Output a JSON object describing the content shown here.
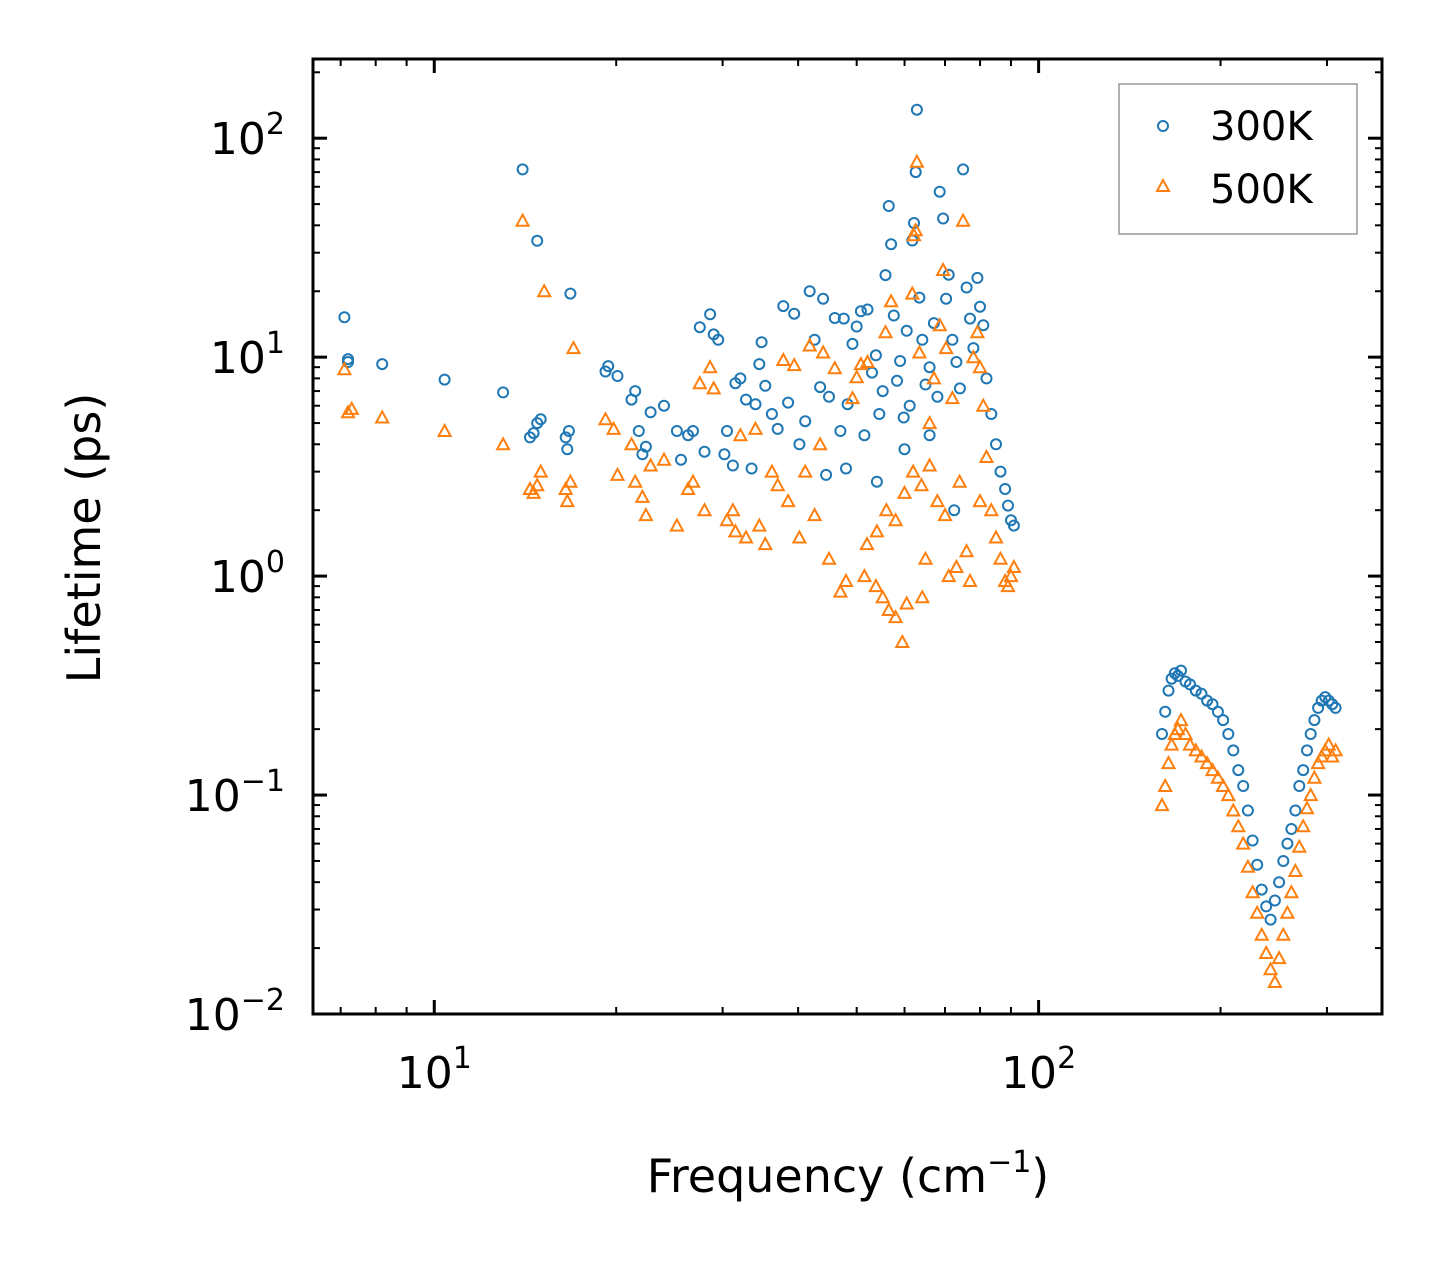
{
  "chart_data": {
    "type": "scatter",
    "title": "",
    "xlabel": "Frequency (cm",
    "xlabel_sup": "−1",
    "xlabel_tail": ")",
    "ylabel": "Lifetime (ps)",
    "xscale": "log",
    "yscale": "log",
    "xlim": [
      6.3,
      370
    ],
    "ylim": [
      0.01,
      230
    ],
    "x_ticks": [
      {
        "value": 10,
        "base": "10",
        "exp": "1"
      },
      {
        "value": 100,
        "base": "10",
        "exp": "2"
      }
    ],
    "y_ticks": [
      {
        "value": 0.01,
        "base": "10",
        "exp": "−2"
      },
      {
        "value": 0.1,
        "base": "10",
        "exp": "−1"
      },
      {
        "value": 1,
        "base": "10",
        "exp": "0"
      },
      {
        "value": 10,
        "base": "10",
        "exp": "1"
      },
      {
        "value": 100,
        "base": "10",
        "exp": "2"
      }
    ],
    "legend_position": "top-right",
    "series": [
      {
        "name": "300K",
        "marker": "circle",
        "color": "#1f77b4",
        "points": [
          [
            7.1,
            15.2
          ],
          [
            7.2,
            9.8
          ],
          [
            7.2,
            9.5
          ],
          [
            8.2,
            9.3
          ],
          [
            10.4,
            7.9
          ],
          [
            13.0,
            6.9
          ],
          [
            14.0,
            72.0
          ],
          [
            14.4,
            4.3
          ],
          [
            14.6,
            4.5
          ],
          [
            14.8,
            34.0
          ],
          [
            14.8,
            5.0
          ],
          [
            15.0,
            5.2
          ],
          [
            16.5,
            4.3
          ],
          [
            16.6,
            3.8
          ],
          [
            16.7,
            4.6
          ],
          [
            16.8,
            19.5
          ],
          [
            19.2,
            8.6
          ],
          [
            19.4,
            9.1
          ],
          [
            20.1,
            8.2
          ],
          [
            21.2,
            6.4
          ],
          [
            21.5,
            7.0
          ],
          [
            21.8,
            4.6
          ],
          [
            22.1,
            3.6
          ],
          [
            22.4,
            3.9
          ],
          [
            22.8,
            5.6
          ],
          [
            24.0,
            6.0
          ],
          [
            25.2,
            4.6
          ],
          [
            25.6,
            3.4
          ],
          [
            26.3,
            4.4
          ],
          [
            26.8,
            4.6
          ],
          [
            27.5,
            13.7
          ],
          [
            28.0,
            3.7
          ],
          [
            28.6,
            15.7
          ],
          [
            29.0,
            12.7
          ],
          [
            29.5,
            12.0
          ],
          [
            30.2,
            3.6
          ],
          [
            30.5,
            4.6
          ],
          [
            31.2,
            3.2
          ],
          [
            31.5,
            7.6
          ],
          [
            32.1,
            8.0
          ],
          [
            32.8,
            6.4
          ],
          [
            33.5,
            3.1
          ],
          [
            34.0,
            6.1
          ],
          [
            34.5,
            9.3
          ],
          [
            34.8,
            11.7
          ],
          [
            35.3,
            7.4
          ],
          [
            36.2,
            5.5
          ],
          [
            37.0,
            4.7
          ],
          [
            37.8,
            17.1
          ],
          [
            38.5,
            6.2
          ],
          [
            39.4,
            15.8
          ],
          [
            40.2,
            4.0
          ],
          [
            41.1,
            5.1
          ],
          [
            41.8,
            20.0
          ],
          [
            42.6,
            12.0
          ],
          [
            43.5,
            7.3
          ],
          [
            44.0,
            18.5
          ],
          [
            45.0,
            6.6
          ],
          [
            46.0,
            15.1
          ],
          [
            47.0,
            4.6
          ],
          [
            47.6,
            15.0
          ],
          [
            48.3,
            6.1
          ],
          [
            49.2,
            11.5
          ],
          [
            50.0,
            13.8
          ],
          [
            50.8,
            16.2
          ],
          [
            51.5,
            4.4
          ],
          [
            52.1,
            16.5
          ],
          [
            53.0,
            8.5
          ],
          [
            53.8,
            10.2
          ],
          [
            54.5,
            5.5
          ],
          [
            55.2,
            7.0
          ],
          [
            55.8,
            23.7
          ],
          [
            56.5,
            49.0
          ],
          [
            57.0,
            32.8
          ],
          [
            57.6,
            15.5
          ],
          [
            58.3,
            7.8
          ],
          [
            59.0,
            9.6
          ],
          [
            59.8,
            5.3
          ],
          [
            60.5,
            13.2
          ],
          [
            61.2,
            6.0
          ],
          [
            61.8,
            34.1
          ],
          [
            62.2,
            41.0
          ],
          [
            62.6,
            70.0
          ],
          [
            62.9,
            135.0
          ],
          [
            63.5,
            18.7
          ],
          [
            64.2,
            12.0
          ],
          [
            65.0,
            7.5
          ],
          [
            66.0,
            9.0
          ],
          [
            67.1,
            14.3
          ],
          [
            68.0,
            6.6
          ],
          [
            68.6,
            57.0
          ],
          [
            69.5,
            43.0
          ],
          [
            70.3,
            18.5
          ],
          [
            71.0,
            23.8
          ],
          [
            72.0,
            12.0
          ],
          [
            73.1,
            9.5
          ],
          [
            74.1,
            7.2
          ],
          [
            75.0,
            72.0
          ],
          [
            76.0,
            20.8
          ],
          [
            77.0,
            15.0
          ],
          [
            78.0,
            11.0
          ],
          [
            79.2,
            23.0
          ],
          [
            80.0,
            17.0
          ],
          [
            81.0,
            14.0
          ],
          [
            82.0,
            8.0
          ],
          [
            83.5,
            5.5
          ],
          [
            85.0,
            4.0
          ],
          [
            86.5,
            3.0
          ],
          [
            88.0,
            2.5
          ],
          [
            89.0,
            2.1
          ],
          [
            90.0,
            1.8
          ],
          [
            91.0,
            1.7
          ],
          [
            60.0,
            3.8
          ],
          [
            66.0,
            4.4
          ],
          [
            72.5,
            2.0
          ],
          [
            48.0,
            3.1
          ],
          [
            54.0,
            2.7
          ],
          [
            44.5,
            2.9
          ],
          [
            160.0,
            0.19
          ],
          [
            162.0,
            0.24
          ],
          [
            164.0,
            0.3
          ],
          [
            166.0,
            0.34
          ],
          [
            168.0,
            0.36
          ],
          [
            170.0,
            0.35
          ],
          [
            172.0,
            0.37
          ],
          [
            175.0,
            0.33
          ],
          [
            178.0,
            0.32
          ],
          [
            182.0,
            0.3
          ],
          [
            186.0,
            0.29
          ],
          [
            190.0,
            0.27
          ],
          [
            194.0,
            0.26
          ],
          [
            198.0,
            0.24
          ],
          [
            202.0,
            0.22
          ],
          [
            206.0,
            0.19
          ],
          [
            210.0,
            0.16
          ],
          [
            214.0,
            0.13
          ],
          [
            218.0,
            0.11
          ],
          [
            222.0,
            0.085
          ],
          [
            226.0,
            0.062
          ],
          [
            230.0,
            0.048
          ],
          [
            234.0,
            0.037
          ],
          [
            238.0,
            0.031
          ],
          [
            242.0,
            0.027
          ],
          [
            246.0,
            0.033
          ],
          [
            250.0,
            0.04
          ],
          [
            254.0,
            0.05
          ],
          [
            258.0,
            0.06
          ],
          [
            262.0,
            0.07
          ],
          [
            266.0,
            0.085
          ],
          [
            270.0,
            0.11
          ],
          [
            274.0,
            0.13
          ],
          [
            278.0,
            0.16
          ],
          [
            282.0,
            0.19
          ],
          [
            286.0,
            0.22
          ],
          [
            290.0,
            0.25
          ],
          [
            294.0,
            0.27
          ],
          [
            298.0,
            0.28
          ],
          [
            302.0,
            0.27
          ],
          [
            306.0,
            0.26
          ],
          [
            310.0,
            0.25
          ]
        ]
      },
      {
        "name": "500K",
        "marker": "triangle",
        "color": "#ff7f0e",
        "points": [
          [
            7.1,
            8.8
          ],
          [
            7.2,
            5.6
          ],
          [
            7.3,
            5.8
          ],
          [
            8.2,
            5.3
          ],
          [
            10.4,
            4.6
          ],
          [
            13.0,
            4.0
          ],
          [
            14.0,
            42.0
          ],
          [
            14.4,
            2.5
          ],
          [
            14.6,
            2.4
          ],
          [
            14.8,
            2.6
          ],
          [
            15.0,
            3.0
          ],
          [
            15.2,
            20.0
          ],
          [
            16.5,
            2.5
          ],
          [
            16.6,
            2.2
          ],
          [
            16.8,
            2.7
          ],
          [
            17.0,
            11.0
          ],
          [
            19.2,
            5.2
          ],
          [
            19.8,
            4.7
          ],
          [
            20.1,
            2.9
          ],
          [
            21.2,
            4.0
          ],
          [
            21.5,
            2.7
          ],
          [
            22.1,
            2.3
          ],
          [
            22.4,
            1.9
          ],
          [
            22.8,
            3.2
          ],
          [
            24.0,
            3.4
          ],
          [
            25.2,
            1.7
          ],
          [
            26.3,
            2.5
          ],
          [
            26.8,
            2.7
          ],
          [
            27.5,
            7.6
          ],
          [
            28.0,
            2.0
          ],
          [
            28.6,
            9.0
          ],
          [
            29.0,
            7.2
          ],
          [
            30.5,
            1.8
          ],
          [
            31.2,
            2.0
          ],
          [
            31.5,
            1.6
          ],
          [
            32.1,
            4.4
          ],
          [
            32.8,
            1.5
          ],
          [
            34.0,
            4.7
          ],
          [
            34.5,
            1.7
          ],
          [
            35.3,
            1.4
          ],
          [
            36.2,
            3.0
          ],
          [
            37.0,
            2.6
          ],
          [
            37.8,
            9.7
          ],
          [
            38.5,
            2.2
          ],
          [
            39.4,
            9.2
          ],
          [
            40.2,
            1.5
          ],
          [
            41.1,
            3.0
          ],
          [
            41.8,
            11.3
          ],
          [
            42.6,
            1.9
          ],
          [
            43.5,
            4.0
          ],
          [
            44.0,
            10.5
          ],
          [
            45.0,
            1.2
          ],
          [
            46.0,
            8.9
          ],
          [
            47.0,
            0.85
          ],
          [
            48.0,
            0.95
          ],
          [
            49.2,
            6.5
          ],
          [
            50.0,
            8.1
          ],
          [
            50.8,
            9.3
          ],
          [
            51.5,
            1.0
          ],
          [
            52.1,
            9.5
          ],
          [
            53.8,
            0.9
          ],
          [
            55.2,
            0.8
          ],
          [
            55.8,
            13.0
          ],
          [
            56.5,
            0.7
          ],
          [
            57.0,
            18.0
          ],
          [
            58.0,
            0.65
          ],
          [
            59.5,
            0.5
          ],
          [
            60.5,
            0.75
          ],
          [
            61.8,
            19.5
          ],
          [
            62.2,
            36.0
          ],
          [
            62.6,
            38.0
          ],
          [
            62.9,
            78.0
          ],
          [
            63.5,
            10.5
          ],
          [
            64.2,
            0.8
          ],
          [
            65.0,
            1.2
          ],
          [
            66.0,
            5.0
          ],
          [
            67.1,
            8.0
          ],
          [
            68.6,
            14.0
          ],
          [
            69.5,
            25.0
          ],
          [
            70.3,
            11.0
          ],
          [
            71.0,
            1.0
          ],
          [
            72.0,
            6.5
          ],
          [
            73.1,
            1.1
          ],
          [
            75.0,
            42.0
          ],
          [
            76.0,
            1.3
          ],
          [
            77.0,
            0.95
          ],
          [
            78.0,
            10.0
          ],
          [
            79.2,
            13.0
          ],
          [
            80.0,
            9.0
          ],
          [
            81.0,
            6.0
          ],
          [
            82.0,
            3.5
          ],
          [
            83.5,
            2.0
          ],
          [
            85.0,
            1.5
          ],
          [
            86.5,
            1.2
          ],
          [
            88.0,
            0.95
          ],
          [
            89.0,
            0.9
          ],
          [
            90.0,
            1.0
          ],
          [
            91.0,
            1.1
          ],
          [
            58.0,
            1.8
          ],
          [
            60.0,
            2.4
          ],
          [
            62.0,
            3.0
          ],
          [
            64.0,
            2.6
          ],
          [
            66.0,
            3.2
          ],
          [
            68.0,
            2.2
          ],
          [
            54.0,
            1.6
          ],
          [
            56.0,
            2.0
          ],
          [
            52.0,
            1.4
          ],
          [
            70.0,
            1.9
          ],
          [
            74.0,
            2.7
          ],
          [
            80.0,
            2.2
          ],
          [
            160.0,
            0.09
          ],
          [
            162.0,
            0.11
          ],
          [
            164.0,
            0.14
          ],
          [
            166.0,
            0.17
          ],
          [
            168.0,
            0.19
          ],
          [
            170.0,
            0.2
          ],
          [
            172.0,
            0.22
          ],
          [
            175.0,
            0.19
          ],
          [
            178.0,
            0.17
          ],
          [
            182.0,
            0.16
          ],
          [
            186.0,
            0.15
          ],
          [
            190.0,
            0.14
          ],
          [
            194.0,
            0.13
          ],
          [
            198.0,
            0.12
          ],
          [
            202.0,
            0.11
          ],
          [
            206.0,
            0.1
          ],
          [
            210.0,
            0.085
          ],
          [
            214.0,
            0.072
          ],
          [
            218.0,
            0.06
          ],
          [
            222.0,
            0.047
          ],
          [
            226.0,
            0.036
          ],
          [
            230.0,
            0.029
          ],
          [
            234.0,
            0.023
          ],
          [
            238.0,
            0.019
          ],
          [
            242.0,
            0.016
          ],
          [
            246.0,
            0.014
          ],
          [
            250.0,
            0.018
          ],
          [
            254.0,
            0.023
          ],
          [
            258.0,
            0.029
          ],
          [
            262.0,
            0.036
          ],
          [
            266.0,
            0.045
          ],
          [
            270.0,
            0.058
          ],
          [
            274.0,
            0.072
          ],
          [
            278.0,
            0.087
          ],
          [
            282.0,
            0.1
          ],
          [
            286.0,
            0.12
          ],
          [
            290.0,
            0.14
          ],
          [
            294.0,
            0.15
          ],
          [
            298.0,
            0.16
          ],
          [
            302.0,
            0.17
          ],
          [
            306.0,
            0.15
          ],
          [
            310.0,
            0.16
          ]
        ]
      }
    ]
  }
}
